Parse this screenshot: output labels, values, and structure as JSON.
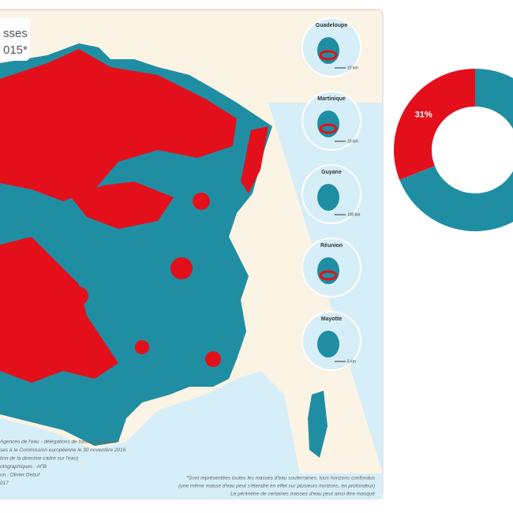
{
  "title_fragment": [
    "sses",
    "015*"
  ],
  "insets": [
    {
      "label": "Guadeloupe",
      "scale": "10 km"
    },
    {
      "label": "Martinique",
      "scale": "10 km"
    },
    {
      "label": "Guyane",
      "scale": "100 km"
    },
    {
      "label": "Réunion"
    },
    {
      "label": "Mayotte",
      "scale": "5 km"
    }
  ],
  "footer_left": [
    "Agences de l'eau - délégations de bassin (données",
    "ses à la Commission européenne le 30 novembre 2016",
    "tion de la directive-cadre sur l'eau)",
    "otographiques : AFB",
    "on : Olivier Debuf",
    "017"
  ],
  "footnote": [
    "*Sont représentées toutes les masses d'eau souterraines, tous horizons confondus",
    "(une même masse d'eau peut s'étendre en effet sur plusieurs horizons, en profondeur)",
    "Le périmètre de certaines masses d'eau peut ainsi être masqué"
  ],
  "chart_data": {
    "type": "pie",
    "values": [
      31,
      69
    ],
    "value_labels": [
      "31%",
      null
    ],
    "colors": [
      "#e3101b",
      "#1f8ea3"
    ]
  }
}
